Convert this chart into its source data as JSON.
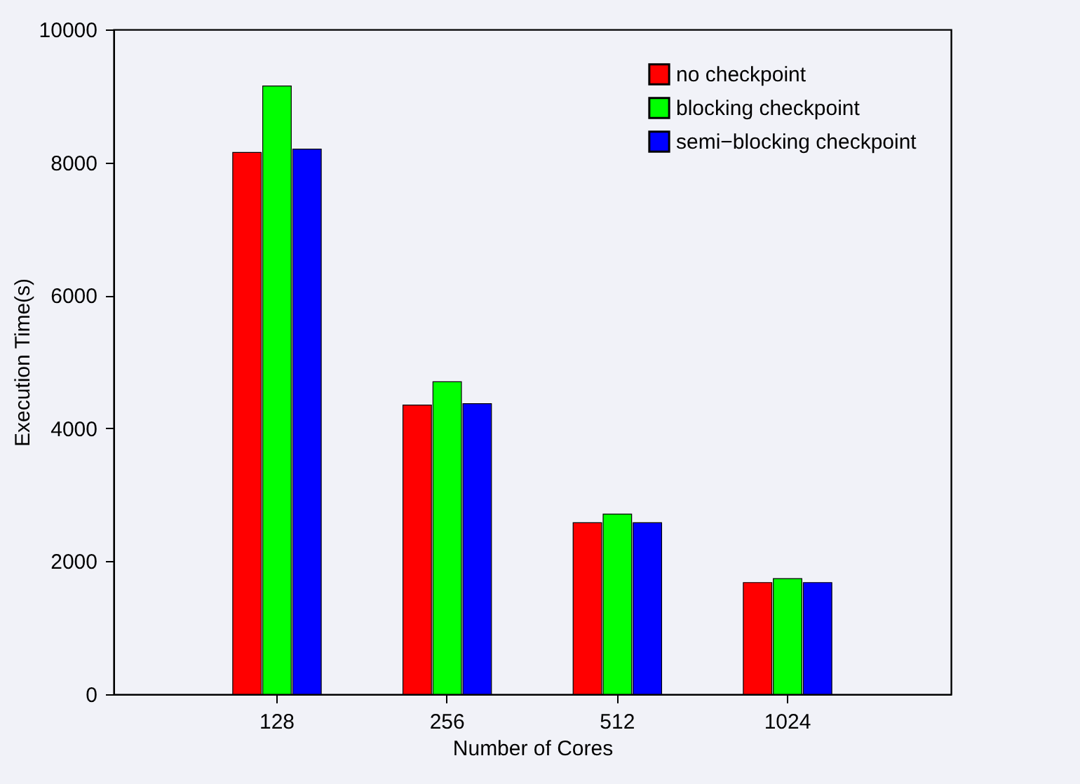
{
  "chart_data": {
    "type": "bar",
    "xlabel": "Number of Cores",
    "ylabel": "Execution Time(s)",
    "categories": [
      "128",
      "256",
      "512",
      "1024"
    ],
    "series": [
      {
        "name": "no checkpoint",
        "color": "#ff0000",
        "values": [
          8150,
          4350,
          2580,
          1680
        ]
      },
      {
        "name": "blocking checkpoint",
        "color": "#00ff00",
        "values": [
          9150,
          4700,
          2710,
          1740
        ]
      },
      {
        "name": "semi−blocking checkpoint",
        "color": "#0000ff",
        "values": [
          8200,
          4370,
          2580,
          1680
        ]
      }
    ],
    "ylim": [
      0,
      10000
    ],
    "yticks": [
      0,
      2000,
      4000,
      6000,
      8000,
      10000
    ],
    "legend": "top right"
  }
}
